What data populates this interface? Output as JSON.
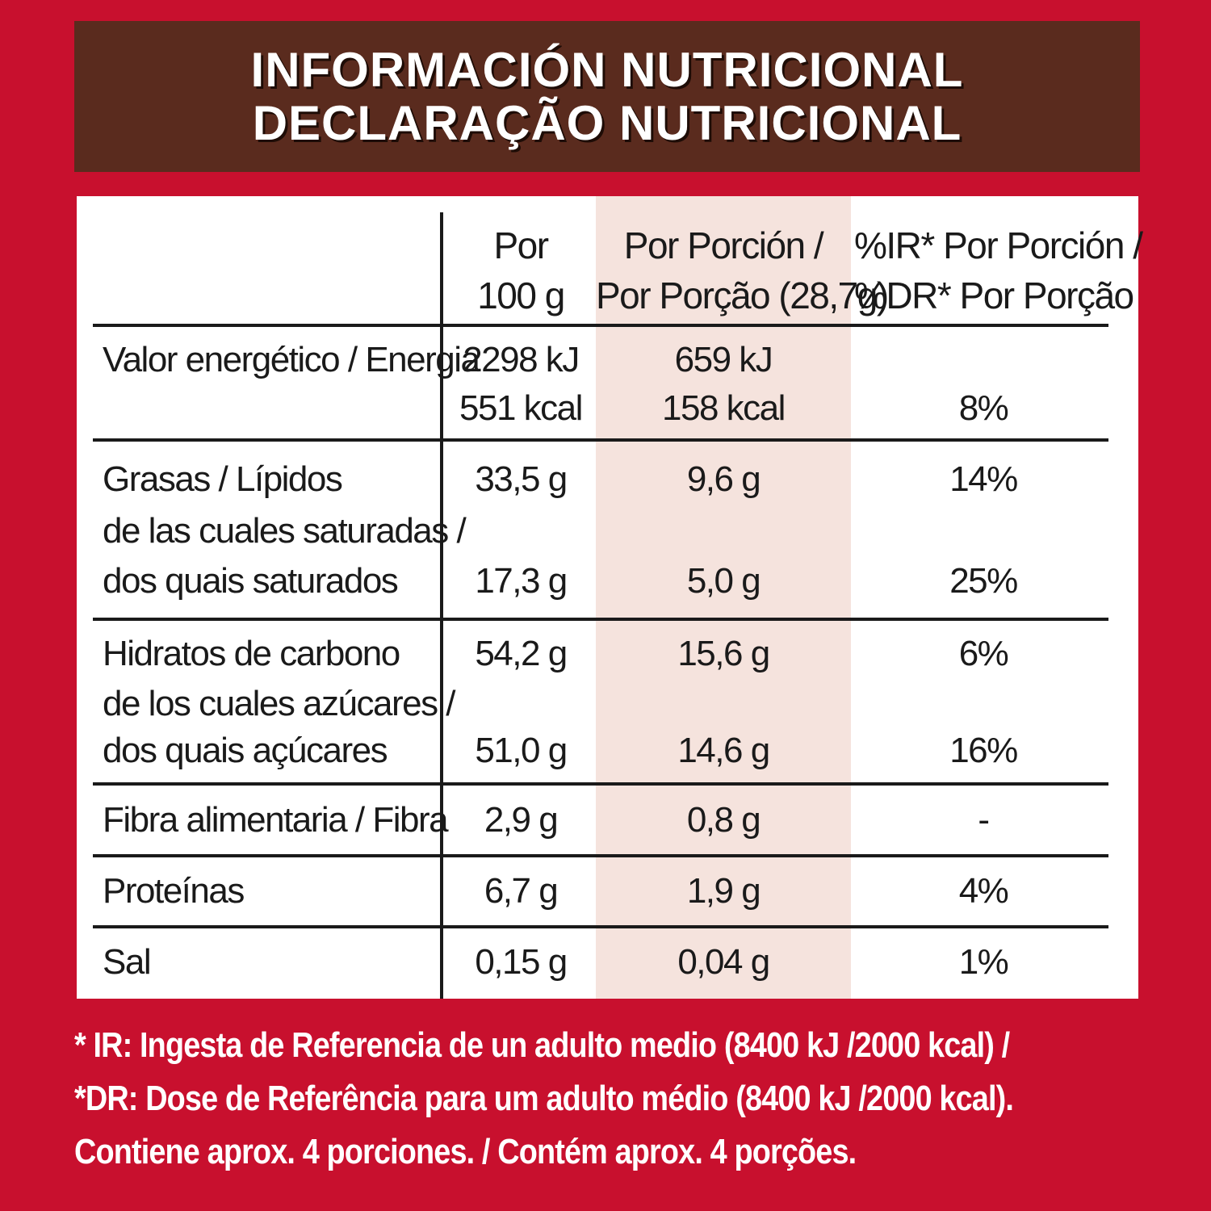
{
  "header": {
    "title_es": "INFORMACIÓN NUTRICIONAL",
    "title_pt": "DECLARAÇÃO NUTRICIONAL"
  },
  "columns": {
    "per100_line1": "Por",
    "per100_line2": "100 g",
    "portion_line1": "Por Porción /",
    "portion_line2": "Por Porção (28,7g)",
    "ir_line1": "%IR* Por Porción /",
    "ir_line2": "%DR* Por Porção"
  },
  "rows": {
    "energy": {
      "label": "Valor energético / Energia",
      "per100_kj": "2298 kJ",
      "per100_kcal": "551 kcal",
      "portion_kj": "659 kJ",
      "portion_kcal": "158 kcal",
      "ir": "8%"
    },
    "fat": {
      "label": "Grasas / Lípidos",
      "per100": "33,5 g",
      "portion": "9,6 g",
      "ir": "14%"
    },
    "saturated": {
      "label1": "de las cuales saturadas /",
      "label2": "dos quais saturados",
      "per100": "17,3 g",
      "portion": "5,0 g",
      "ir": "25%"
    },
    "carbs": {
      "label": "Hidratos de carbono",
      "per100": "54,2 g",
      "portion": "15,6 g",
      "ir": "6%"
    },
    "sugars": {
      "label1": "de los cuales azúcares /",
      "label2": "dos quais açúcares",
      "per100": "51,0 g",
      "portion": "14,6 g",
      "ir": "16%"
    },
    "fibre": {
      "label": "Fibra alimentaria / Fibra",
      "per100": "2,9 g",
      "portion": "0,8 g",
      "ir": "-"
    },
    "protein": {
      "label": "Proteínas",
      "per100": "6,7 g",
      "portion": "1,9 g",
      "ir": "4%"
    },
    "salt": {
      "label": "Sal",
      "per100": "0,15 g",
      "portion": "0,04 g",
      "ir": "1%"
    }
  },
  "footer": {
    "line1": "* IR: Ingesta de Referencia de un adulto medio (8400 kJ /2000 kcal) /",
    "line2": "*DR: Dose de Referência para um adulto médio (8400 kJ /2000 kcal).",
    "line3": "Contiene aprox. 4 porciones. / Contém aprox. 4 porções."
  },
  "colors": {
    "background": "#c8102e",
    "header_bg": "#5a2b1e",
    "portion_column_bg": "#f5e3dd",
    "text": "#1a1a1a"
  }
}
